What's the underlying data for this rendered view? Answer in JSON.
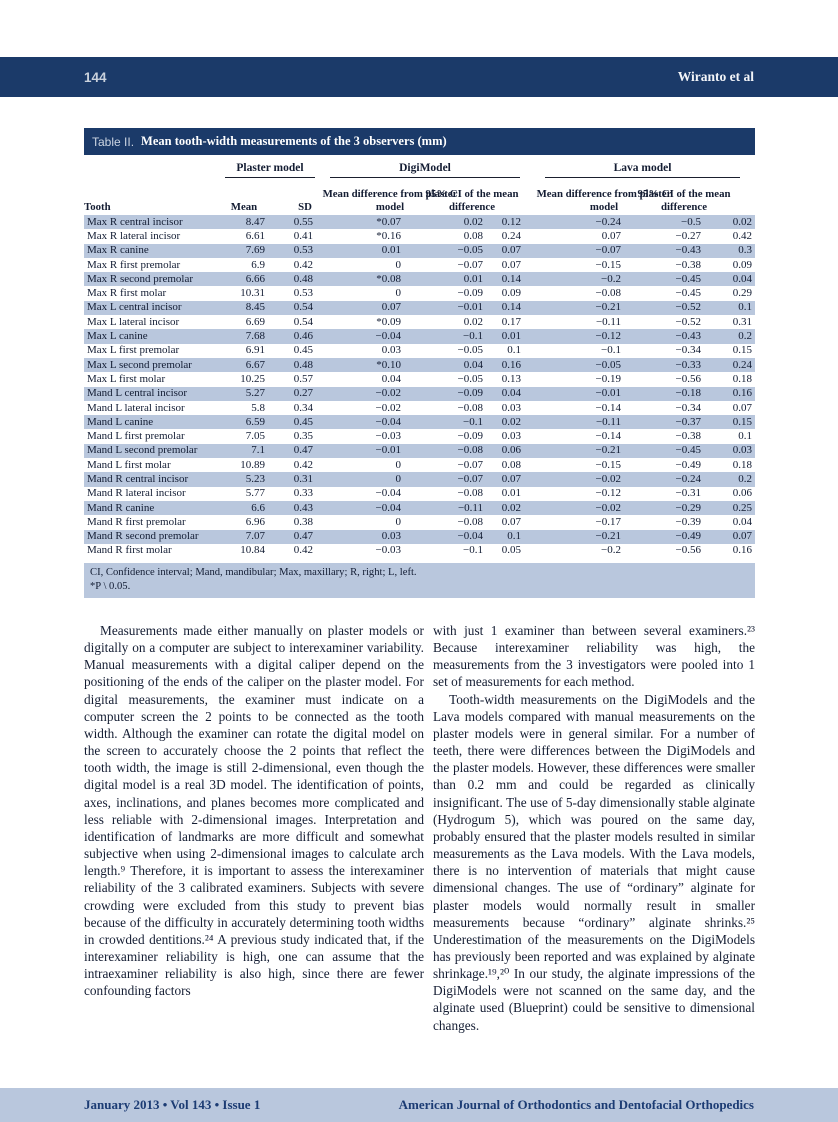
{
  "header": {
    "page_number": "144",
    "running_title": "Wiranto et al"
  },
  "table": {
    "label": "Table II.",
    "title": "Mean tooth-width measurements of the 3 observers (mm)",
    "groups": {
      "plaster": "Plaster model",
      "digi": "DigiModel",
      "lava": "Lava model"
    },
    "columns": {
      "tooth": "Tooth",
      "mean": "Mean",
      "sd": "SD",
      "mean_diff": "Mean difference from plaster model",
      "ci": "95% CI of the mean difference"
    },
    "rows": [
      [
        "Max R central incisor",
        "8.47",
        "0.55",
        "*0.07",
        "0.02",
        "0.12",
        "−0.24",
        "−0.5",
        "0.02"
      ],
      [
        "Max R lateral incisor",
        "6.61",
        "0.41",
        "*0.16",
        "0.08",
        "0.24",
        "0.07",
        "−0.27",
        "0.42"
      ],
      [
        "Max R canine",
        "7.69",
        "0.53",
        "0.01",
        "−0.05",
        "0.07",
        "−0.07",
        "−0.43",
        "0.3"
      ],
      [
        "Max R first premolar",
        "6.9",
        "0.42",
        "0",
        "−0.07",
        "0.07",
        "−0.15",
        "−0.38",
        "0.09"
      ],
      [
        "Max R second premolar",
        "6.66",
        "0.48",
        "*0.08",
        "0.01",
        "0.14",
        "−0.2",
        "−0.45",
        "0.04"
      ],
      [
        "Max R first molar",
        "10.31",
        "0.53",
        "0",
        "−0.09",
        "0.09",
        "−0.08",
        "−0.45",
        "0.29"
      ],
      [
        "Max L central incisor",
        "8.45",
        "0.54",
        "0.07",
        "−0.01",
        "0.14",
        "−0.21",
        "−0.52",
        "0.1"
      ],
      [
        "Max L lateral incisor",
        "6.69",
        "0.54",
        "*0.09",
        "0.02",
        "0.17",
        "−0.11",
        "−0.52",
        "0.31"
      ],
      [
        "Max L canine",
        "7.68",
        "0.46",
        "−0.04",
        "−0.1",
        "0.01",
        "−0.12",
        "−0.43",
        "0.2"
      ],
      [
        "Max L first premolar",
        "6.91",
        "0.45",
        "0.03",
        "−0.05",
        "0.1",
        "−0.1",
        "−0.34",
        "0.15"
      ],
      [
        "Max L second premolar",
        "6.67",
        "0.48",
        "*0.10",
        "0.04",
        "0.16",
        "−0.05",
        "−0.33",
        "0.24"
      ],
      [
        "Max L first molar",
        "10.25",
        "0.57",
        "0.04",
        "−0.05",
        "0.13",
        "−0.19",
        "−0.56",
        "0.18"
      ],
      [
        "Mand L central incisor",
        "5.27",
        "0.27",
        "−0.02",
        "−0.09",
        "0.04",
        "−0.01",
        "−0.18",
        "0.16"
      ],
      [
        "Mand L lateral incisor",
        "5.8",
        "0.34",
        "−0.02",
        "−0.08",
        "0.03",
        "−0.14",
        "−0.34",
        "0.07"
      ],
      [
        "Mand L canine",
        "6.59",
        "0.45",
        "−0.04",
        "−0.1",
        "0.02",
        "−0.11",
        "−0.37",
        "0.15"
      ],
      [
        "Mand L first premolar",
        "7.05",
        "0.35",
        "−0.03",
        "−0.09",
        "0.03",
        "−0.14",
        "−0.38",
        "0.1"
      ],
      [
        "Mand L second premolar",
        "7.1",
        "0.47",
        "−0.01",
        "−0.08",
        "0.06",
        "−0.21",
        "−0.45",
        "0.03"
      ],
      [
        "Mand L first molar",
        "10.89",
        "0.42",
        "0",
        "−0.07",
        "0.08",
        "−0.15",
        "−0.49",
        "0.18"
      ],
      [
        "Mand R central incisor",
        "5.23",
        "0.31",
        "0",
        "−0.07",
        "0.07",
        "−0.02",
        "−0.24",
        "0.2"
      ],
      [
        "Mand R lateral incisor",
        "5.77",
        "0.33",
        "−0.04",
        "−0.08",
        "0.01",
        "−0.12",
        "−0.31",
        "0.06"
      ],
      [
        "Mand R canine",
        "6.6",
        "0.43",
        "−0.04",
        "−0.11",
        "0.02",
        "−0.02",
        "−0.29",
        "0.25"
      ],
      [
        "Mand R first premolar",
        "6.96",
        "0.38",
        "0",
        "−0.08",
        "0.07",
        "−0.17",
        "−0.39",
        "0.04"
      ],
      [
        "Mand R second premolar",
        "7.07",
        "0.47",
        "0.03",
        "−0.04",
        "0.1",
        "−0.21",
        "−0.49",
        "0.07"
      ],
      [
        "Mand R first molar",
        "10.84",
        "0.42",
        "−0.03",
        "−0.1",
        "0.05",
        "−0.2",
        "−0.56",
        "0.16"
      ]
    ],
    "footnotes": [
      "CI, Confidence interval; Mand, mandibular; Max, maxillary; R, right; L, left.",
      "*P \\ 0.05."
    ]
  },
  "body": {
    "col1": [
      "Measurements made either manually on plaster models or digitally on a computer are subject to interexaminer variability. Manual measurements with a digital caliper depend on the positioning of the ends of the caliper on the plaster model. For digital measurements, the examiner must indicate on a computer screen the 2 points to be connected as the tooth width. Although the examiner can rotate the digital model on the screen to accurately choose the 2 points that reflect the tooth width, the image is still 2-dimensional, even though the digital model is a real 3D model. The identification of points, axes, inclinations, and planes becomes more complicated and less reliable with 2-dimensional images. Interpretation and identification of landmarks are more difficult and somewhat subjective when using 2-dimensional images to calculate arch length.⁹ Therefore, it is important to assess the interexaminer reliability of the 3 calibrated examiners. Subjects with severe crowding were excluded from this study to prevent bias because of the difficulty in accurately determining tooth widths in crowded dentitions.²⁴ A previous study indicated that, if the interexaminer reliability is high, one can assume that the intraexaminer reliability is also high, since there are fewer confounding factors"
    ],
    "col2": [
      "with just 1 examiner than between several examiners.²³ Because interexaminer reliability was high, the measurements from the 3 investigators were pooled into 1 set of measurements for each method.",
      "Tooth-width measurements on the DigiModels and the Lava models compared with manual measurements on the plaster models were in general similar. For a number of teeth, there were differences between the DigiModels and the plaster models. However, these differences were smaller than 0.2 mm and could be regarded as clinically insignificant. The use of 5-day dimensionally stable alginate (Hydrogum 5), which was poured on the same day, probably ensured that the plaster models resulted in similar measurements as the Lava models. With the Lava models, there is no intervention of materials that might cause dimensional changes. The use of “ordinary” alginate for plaster models would normally result in smaller measurements because “ordinary” alginate shrinks.²⁵ Underestimation of the measurements on the DigiModels has previously been reported and was explained by alginate shrinkage.¹⁹,²⁰ In our study, the alginate impressions of the DigiModels were not scanned on the same day, and the alginate used (Blueprint) could be sensitive to dimensional changes."
    ]
  },
  "footer": {
    "issue_line": "January 2013 • Vol 143 • Issue 1",
    "journal": "American Journal of Orthodontics and Dentofacial Orthopedics"
  },
  "colors": {
    "navy": "#1b3a69",
    "row_blue": "#b9c7dd",
    "footer_text": "#1c3c74"
  }
}
